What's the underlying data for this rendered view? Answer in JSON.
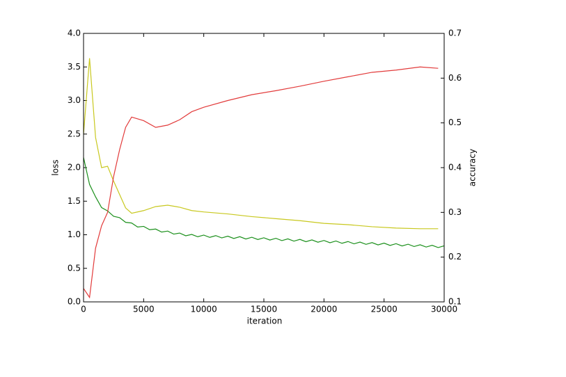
{
  "chart_data": {
    "type": "line",
    "xlabel": "iteration",
    "ylabel": "loss",
    "y2label": "accuracy",
    "xlim": [
      0,
      30000
    ],
    "xticks": [
      0,
      5000,
      10000,
      15000,
      20000,
      25000,
      30000
    ],
    "ylim": [
      0,
      4
    ],
    "yticks": [
      {
        "value": 0,
        "label": "0.0"
      },
      0.5,
      {
        "value": 1,
        "label": "1.0"
      },
      1.5,
      {
        "value": 2,
        "label": "2.0"
      },
      2.5,
      {
        "value": 3,
        "label": "3.0"
      },
      3.5,
      {
        "value": 4,
        "label": "4.0"
      }
    ],
    "y2lim": [
      0.1,
      0.7
    ],
    "y2ticks": [
      0.1,
      0.2,
      0.3,
      0.4,
      0.5,
      0.6,
      0.7
    ],
    "series": [
      {
        "color": "#1a8f1a",
        "x": [
          0,
          500,
          1000,
          1500,
          2000,
          2500,
          3000,
          3500,
          4000,
          4500,
          5000,
          5500,
          6000,
          6500,
          7000,
          7500,
          8000,
          8500,
          9000,
          9500,
          10000,
          10500,
          11000,
          11500,
          12000,
          12500,
          13000,
          13500,
          14000,
          14500,
          15000,
          15500,
          16000,
          16500,
          17000,
          17500,
          18000,
          18500,
          19000,
          19500,
          20000,
          20500,
          21000,
          21500,
          22000,
          22500,
          23000,
          23500,
          24000,
          24500,
          25000,
          25500,
          26000,
          26500,
          27000,
          27500,
          28000,
          28500,
          29000,
          29500,
          30000
        ],
        "values": [
          2.15,
          1.75,
          1.565,
          1.405,
          1.355,
          1.275,
          1.255,
          1.185,
          1.175,
          1.115,
          1.125,
          1.075,
          1.085,
          1.04,
          1.055,
          1.01,
          1.025,
          0.985,
          1.005,
          0.97,
          0.995,
          0.961,
          0.987,
          0.953,
          0.979,
          0.945,
          0.971,
          0.937,
          0.963,
          0.929,
          0.955,
          0.921,
          0.947,
          0.913,
          0.939,
          0.905,
          0.931,
          0.897,
          0.923,
          0.889,
          0.915,
          0.881,
          0.907,
          0.873,
          0.899,
          0.865,
          0.891,
          0.857,
          0.883,
          0.849,
          0.875,
          0.841,
          0.867,
          0.833,
          0.859,
          0.825,
          0.851,
          0.817,
          0.843,
          0.809,
          0.835
        ]
      },
      {
        "color": "#c8c81e",
        "x": [
          0,
          500,
          1000,
          1500,
          2000,
          2500,
          3000,
          3500,
          4000,
          5000,
          6000,
          7000,
          8000,
          9000,
          10000,
          12000,
          14000,
          16000,
          18000,
          20000,
          22000,
          24000,
          26000,
          28000,
          29500
        ],
        "values": [
          2.5,
          3.63,
          2.45,
          2.0,
          2.02,
          1.8,
          1.6,
          1.4,
          1.32,
          1.36,
          1.42,
          1.44,
          1.41,
          1.36,
          1.34,
          1.31,
          1.27,
          1.24,
          1.21,
          1.17,
          1.15,
          1.12,
          1.1,
          1.09,
          1.09
        ]
      },
      {
        "color": "#e23a3a",
        "axis": "y2",
        "x": [
          0,
          500,
          1000,
          1500,
          2000,
          2500,
          3000,
          3500,
          4000,
          5000,
          6000,
          7000,
          8000,
          9000,
          10000,
          12000,
          14000,
          16000,
          18000,
          20000,
          22000,
          24000,
          26000,
          28000,
          29500
        ],
        "values": [
          0.13,
          0.11,
          0.22,
          0.27,
          0.3,
          0.38,
          0.44,
          0.49,
          0.513,
          0.505,
          0.49,
          0.495,
          0.507,
          0.525,
          0.535,
          0.55,
          0.563,
          0.572,
          0.582,
          0.593,
          0.603,
          0.613,
          0.618,
          0.625,
          0.622
        ]
      }
    ]
  }
}
